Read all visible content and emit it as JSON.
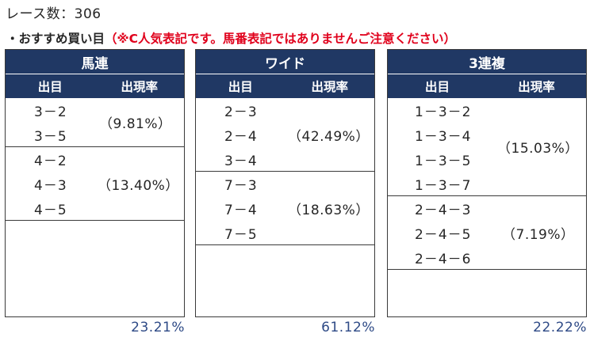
{
  "header": {
    "race_count": "レース数：306",
    "bullet": "・",
    "subtitle": "おすすめ買い目",
    "note": "（※C人気表記です。馬番表記ではありませんご注意ください）"
  },
  "columns": {
    "combo": "出目",
    "rate": "出現率"
  },
  "panels": [
    {
      "title": "馬連",
      "groups": [
        {
          "combos": [
            "3－2",
            "3－5"
          ],
          "rate": "（9.81%）"
        },
        {
          "combos": [
            "4－2",
            "4－3",
            "4－5"
          ],
          "rate": "（13.40%）"
        }
      ],
      "total": "23.21%"
    },
    {
      "title": "ワイド",
      "groups": [
        {
          "combos": [
            "2－3",
            "2－4",
            "3－4"
          ],
          "rate": "（42.49%）"
        },
        {
          "combos": [
            "7－3",
            "7－4",
            "7－5"
          ],
          "rate": "（18.63%）"
        }
      ],
      "total": "61.12%"
    },
    {
      "title": "3連複",
      "groups": [
        {
          "combos": [
            "1－3－2",
            "1－3－4",
            "1－3－5",
            "1－3－7"
          ],
          "rate": "（15.03%）"
        },
        {
          "combos": [
            "2－4－3",
            "2－4－5",
            "2－4－6"
          ],
          "rate": "（7.19%）"
        }
      ],
      "total": "22.22%"
    }
  ]
}
